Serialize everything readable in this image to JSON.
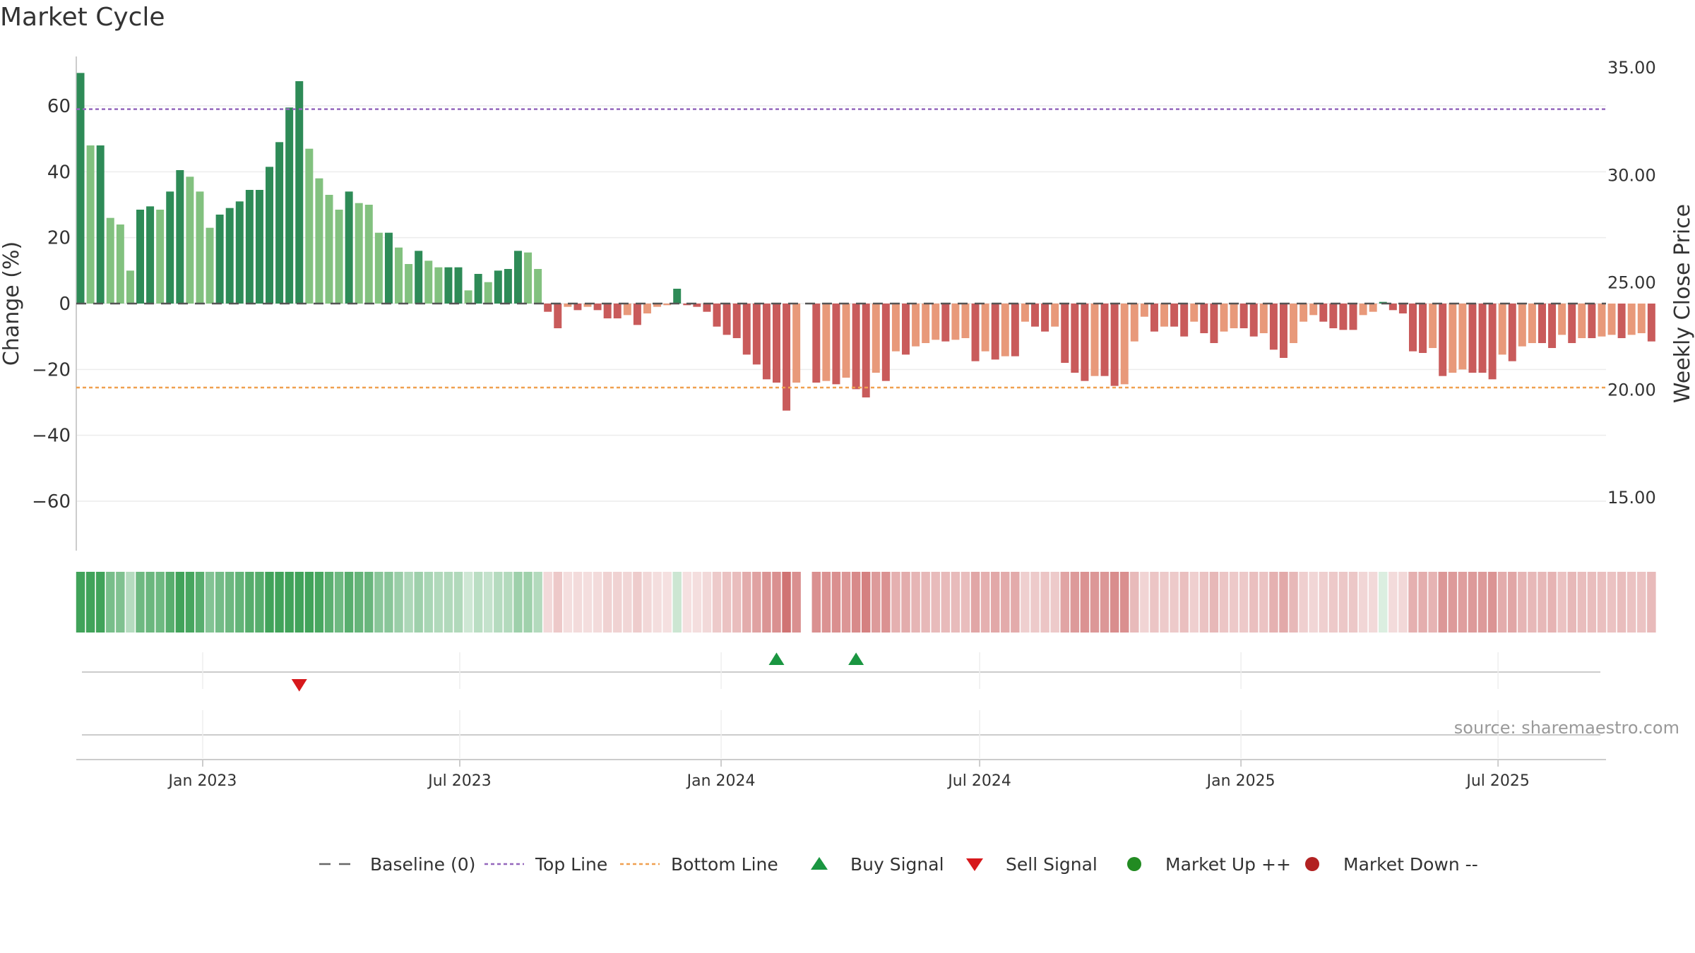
{
  "chart_data": {
    "type": "bar",
    "title": "Market Cycle",
    "ylabel": "Change (%)",
    "y2label": "Weekly Close Price",
    "ylim": [
      -75,
      75
    ],
    "y2lim": [
      12.5,
      35.5
    ],
    "yticks": [
      60,
      40,
      20,
      0,
      -20,
      -40,
      -60
    ],
    "ytick_labels": [
      "60",
      "40",
      "20",
      "0",
      "−20",
      "−40",
      "−60"
    ],
    "y2ticks": [
      35,
      30,
      25,
      20,
      15
    ],
    "y2tick_labels": [
      "35.00",
      "30.00",
      "25.00",
      "20.00",
      "15.00"
    ],
    "x_start": "2022-10-07",
    "xlim": [
      "2022-10-04",
      "2025-09-15"
    ],
    "xticks": [
      "2023-01-01",
      "2023-07-01",
      "2024-01-01",
      "2024-07-01",
      "2025-01-01",
      "2025-07-01"
    ],
    "xtick_labels": [
      "Jan 2023",
      "Jul 2023",
      "Jan 2024",
      "Jul 2024",
      "Jan 2025",
      "Jul 2025"
    ],
    "top_line": 59,
    "bottom_line": -25.5,
    "values": [
      70,
      48,
      48,
      26,
      24,
      10,
      28.5,
      29.5,
      28.5,
      34,
      40.5,
      38.5,
      34,
      23,
      27,
      29,
      31,
      34.5,
      34.5,
      41.5,
      49,
      59.5,
      67.5,
      47,
      38,
      33,
      28.5,
      34,
      30.5,
      30,
      21.5,
      21.5,
      17,
      12,
      16,
      13,
      11,
      11,
      11,
      4,
      9,
      6.5,
      10,
      10.5,
      16,
      15.5,
      10.5,
      -2.5,
      -7.5,
      -1,
      -2,
      -1,
      -2,
      -4.5,
      -4.5,
      -3.5,
      -6.5,
      -3,
      -1,
      -0.5,
      4.5,
      -0.5,
      -1,
      -2.5,
      -7,
      -9.5,
      -10.5,
      -15.5,
      -18.5,
      -23,
      -24,
      -32.5,
      -24,
      null,
      -24,
      -23.5,
      -24.5,
      -22.5,
      -26,
      -28.5,
      -21,
      -23.5,
      -14.5,
      -15.5,
      -13,
      -12,
      -11,
      -11.5,
      -11,
      -10.5,
      -17.5,
      -14.5,
      -17,
      -16,
      -16,
      -5.5,
      -7,
      -8.5,
      -7,
      -18,
      -21,
      -23.5,
      -22,
      -22,
      -25,
      -24.5,
      -11.5,
      -4,
      -8.5,
      -7,
      -7,
      -10,
      -5.5,
      -9,
      -12,
      -8.5,
      -7.5,
      -7.5,
      -10,
      -9,
      -14,
      -16.5,
      -12,
      -5.5,
      -3.5,
      -5.5,
      -7.5,
      -8,
      -8,
      -3.5,
      -2.5,
      0.5,
      -2,
      -3,
      -14.5,
      -15,
      -13.5,
      -22,
      -21,
      -20,
      -21,
      -21,
      -23,
      -15.5,
      -17.5,
      -13,
      -12,
      -12,
      -13.5,
      -9.5,
      -12,
      -10.5,
      -10.5,
      -10,
      -9.5,
      -10.5,
      -9.5,
      -9,
      -11.5
    ],
    "buy_signals": [
      "2024-02-09",
      "2024-04-05"
    ],
    "sell_signals": [
      "2023-03-10"
    ],
    "legend_position": "bottom",
    "legend": [
      {
        "label": "Baseline (0)",
        "style": "dashed",
        "color": "#666666"
      },
      {
        "label": "Top Line",
        "style": "dotted",
        "color": "#9467bd"
      },
      {
        "label": "Bottom Line",
        "style": "dotted",
        "color": "#f0a050"
      },
      {
        "label": "Buy Signal",
        "style": "triangle-up",
        "color": "#1a9641"
      },
      {
        "label": "Sell Signal",
        "style": "triangle-down",
        "color": "#d7191c"
      },
      {
        "label": "Market Up ++",
        "style": "circle",
        "color": "#228b22"
      },
      {
        "label": "Market Down --",
        "style": "circle",
        "color": "#b22222"
      }
    ],
    "source": "source: sharemaestro.com",
    "grid": true
  },
  "colors": {
    "up_strong": "#2e8b57",
    "up_light": "#82c17f",
    "down_strong": "#c95b5b",
    "down_light": "#e8997a",
    "heat_up": "#41a35a",
    "heat_down": "#c85a5a",
    "top_line": "#9467bd",
    "bottom_line": "#f0a050",
    "buy": "#1a9641",
    "sell": "#d7191c"
  }
}
